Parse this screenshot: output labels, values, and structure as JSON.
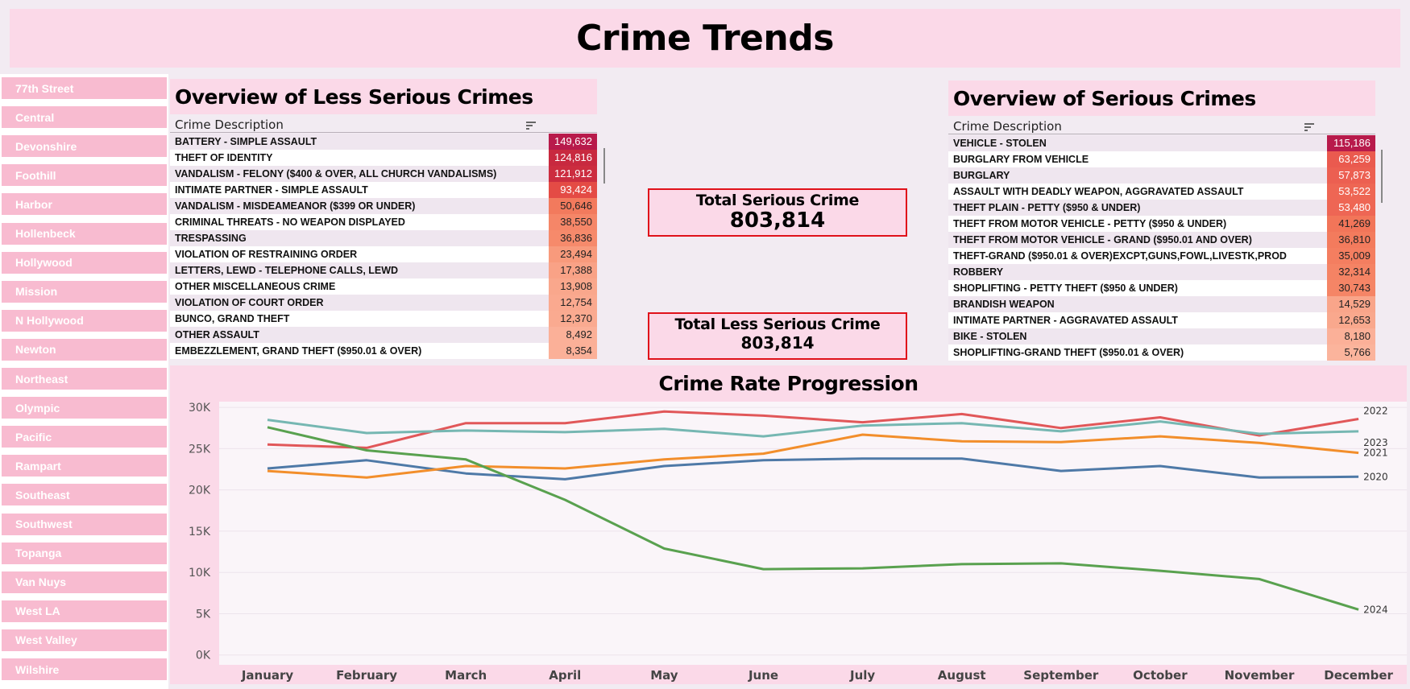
{
  "page": {
    "title": "Crime Trends"
  },
  "sidebar": {
    "items": [
      "77th Street",
      "Central",
      "Devonshire",
      "Foothill",
      "Harbor",
      "Hollenbeck",
      "Hollywood",
      "Mission",
      "N Hollywood",
      "Newton",
      "Northeast",
      "Olympic",
      "Pacific",
      "Rampart",
      "Southeast",
      "Southwest",
      "Topanga",
      "Van Nuys",
      "West LA",
      "West Valley",
      "Wilshire"
    ]
  },
  "less_serious": {
    "title": "Overview of Less Serious Crimes",
    "column_header": "Crime  Description",
    "rows": [
      {
        "desc": "BATTERY - SIMPLE ASSAULT",
        "value": "149,632",
        "color": "#b81a4b",
        "text_color": "#ffffff"
      },
      {
        "desc": "THEFT OF IDENTITY",
        "value": "124,816",
        "color": "#c8293f",
        "text_color": "#ffffff"
      },
      {
        "desc": "VANDALISM - FELONY ($400 & OVER, ALL CHURCH VANDALISMS)",
        "value": "121,912",
        "color": "#cc2d3f",
        "text_color": "#ffffff"
      },
      {
        "desc": "INTIMATE PARTNER - SIMPLE ASSAULT",
        "value": "93,424",
        "color": "#e44b45",
        "text_color": "#ffffff"
      },
      {
        "desc": "VANDALISM - MISDEAMEANOR ($399 OR UNDER)",
        "value": "50,646",
        "color": "#f27a5d",
        "text_color": "#222222"
      },
      {
        "desc": "CRIMINAL THREATS - NO WEAPON DISPLAYED",
        "value": "38,550",
        "color": "#f58668",
        "text_color": "#222222"
      },
      {
        "desc": "TRESPASSING",
        "value": "36,836",
        "color": "#f68a6b",
        "text_color": "#222222"
      },
      {
        "desc": "VIOLATION OF RESTRAINING ORDER",
        "value": "23,494",
        "color": "#f89a7c",
        "text_color": "#222222"
      },
      {
        "desc": "LETTERS, LEWD  -  TELEPHONE CALLS, LEWD",
        "value": "17,388",
        "color": "#f9a286",
        "text_color": "#222222"
      },
      {
        "desc": "OTHER MISCELLANEOUS CRIME",
        "value": "13,908",
        "color": "#f9a78c",
        "text_color": "#222222"
      },
      {
        "desc": "VIOLATION OF COURT ORDER",
        "value": "12,754",
        "color": "#faa98f",
        "text_color": "#222222"
      },
      {
        "desc": "BUNCO, GRAND THEFT",
        "value": "12,370",
        "color": "#faaa90",
        "text_color": "#222222"
      },
      {
        "desc": "OTHER ASSAULT",
        "value": "8,492",
        "color": "#fbb098",
        "text_color": "#222222"
      },
      {
        "desc": "EMBEZZLEMENT, GRAND THEFT ($950.01 & OVER)",
        "value": "8,354",
        "color": "#fbb098",
        "text_color": "#222222"
      }
    ]
  },
  "serious": {
    "title": "Overview of Serious Crimes",
    "column_header": "Crime  Description",
    "rows": [
      {
        "desc": "VEHICLE - STOLEN",
        "value": "115,186",
        "color": "#b81a4b",
        "text_color": "#ffffff"
      },
      {
        "desc": "BURGLARY FROM VEHICLE",
        "value": "63,259",
        "color": "#ea5a4f",
        "text_color": "#ffffff"
      },
      {
        "desc": "BURGLARY",
        "value": "57,873",
        "color": "#ec5f51",
        "text_color": "#ffffff"
      },
      {
        "desc": "ASSAULT WITH DEADLY WEAPON, AGGRAVATED ASSAULT",
        "value": "53,522",
        "color": "#ee6654",
        "text_color": "#ffffff"
      },
      {
        "desc": "THEFT PLAIN - PETTY ($950 & UNDER)",
        "value": "53,480",
        "color": "#ee6654",
        "text_color": "#ffffff"
      },
      {
        "desc": "THEFT FROM MOTOR VEHICLE - PETTY ($950 & UNDER)",
        "value": "41,269",
        "color": "#f27559",
        "text_color": "#222222"
      },
      {
        "desc": "THEFT FROM MOTOR VEHICLE - GRAND ($950.01 AND OVER)",
        "value": "36,810",
        "color": "#f37b5d",
        "text_color": "#222222"
      },
      {
        "desc": "THEFT-GRAND ($950.01 & OVER)EXCPT,GUNS,FOWL,LIVESTK,PROD",
        "value": "35,009",
        "color": "#f47e60",
        "text_color": "#222222"
      },
      {
        "desc": "ROBBERY",
        "value": "32,314",
        "color": "#f58364",
        "text_color": "#222222"
      },
      {
        "desc": "SHOPLIFTING - PETTY THEFT ($950 & UNDER)",
        "value": "30,743",
        "color": "#f58566",
        "text_color": "#222222"
      },
      {
        "desc": "BRANDISH WEAPON",
        "value": "14,529",
        "color": "#f9a58a",
        "text_color": "#222222"
      },
      {
        "desc": "INTIMATE PARTNER - AGGRAVATED ASSAULT",
        "value": "12,653",
        "color": "#f9a88d",
        "text_color": "#222222"
      },
      {
        "desc": "BIKE - STOLEN",
        "value": "8,180",
        "color": "#fbb098",
        "text_color": "#222222"
      },
      {
        "desc": "SHOPLIFTING-GRAND THEFT ($950.01 & OVER)",
        "value": "5,766",
        "color": "#fbb49c",
        "text_color": "#222222"
      }
    ]
  },
  "kpis": {
    "serious": {
      "label": "Total Serious Crime",
      "value": "803,814"
    },
    "less_serious": {
      "label": "Total Less Serious Crime",
      "value": "803,814"
    }
  },
  "chart_data": {
    "type": "line",
    "title": "Crime Rate Progression",
    "categories": [
      "January",
      "February",
      "March",
      "April",
      "May",
      "June",
      "July",
      "August",
      "September",
      "October",
      "November",
      "December"
    ],
    "y_ticks": [
      "0K",
      "5K",
      "10K",
      "15K",
      "20K",
      "25K",
      "30K"
    ],
    "ylim": [
      -1200,
      30700
    ],
    "grid": true,
    "series": [
      {
        "name": "2020",
        "color": "#4e79a7",
        "values": [
          22600,
          23600,
          22000,
          21300,
          22900,
          23600,
          23800,
          23800,
          22300,
          22900,
          21500,
          21600
        ]
      },
      {
        "name": "2021",
        "color": "#f28e2b",
        "values": [
          22300,
          21500,
          22900,
          22600,
          23700,
          24400,
          26700,
          25900,
          25800,
          26500,
          25700,
          24500
        ]
      },
      {
        "name": "2022",
        "color": "#e15759",
        "values": [
          25500,
          25100,
          28100,
          28100,
          29500,
          29000,
          28200,
          29200,
          27500,
          28800,
          26600,
          28600
        ]
      },
      {
        "name": "2023",
        "color": "#76b7b2",
        "values": [
          28500,
          26900,
          27200,
          27000,
          27400,
          26500,
          27800,
          28100,
          27100,
          28300,
          26800,
          27100
        ]
      },
      {
        "name": "2024",
        "color": "#59a14f",
        "values": [
          27600,
          24800,
          23700,
          18800,
          12900,
          10400,
          10500,
          11000,
          11100,
          10200,
          9200,
          5500
        ]
      }
    ]
  }
}
